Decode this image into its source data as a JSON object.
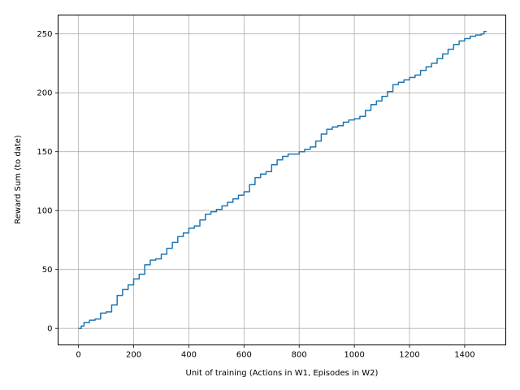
{
  "chart_data": {
    "type": "line",
    "title": "",
    "xlabel": "Unit of training (Actions in W1, Episodes in W2)",
    "ylabel": "Reward Sum (to date)",
    "xlim": [
      -74,
      1549
    ],
    "ylim": [
      -14,
      266
    ],
    "xticks": [
      0,
      200,
      400,
      600,
      800,
      1000,
      1200,
      1400
    ],
    "yticks": [
      0,
      50,
      100,
      150,
      200,
      250
    ],
    "grid": true,
    "legend": "none",
    "series": [
      {
        "color": "#1f77b4",
        "x": [
          0,
          10,
          20,
          40,
          60,
          80,
          100,
          120,
          140,
          160,
          180,
          200,
          220,
          240,
          260,
          280,
          300,
          320,
          340,
          360,
          380,
          400,
          420,
          440,
          460,
          480,
          500,
          520,
          540,
          560,
          580,
          600,
          620,
          640,
          660,
          680,
          700,
          720,
          740,
          760,
          780,
          800,
          820,
          840,
          860,
          880,
          900,
          920,
          940,
          960,
          980,
          1000,
          1020,
          1040,
          1060,
          1080,
          1100,
          1120,
          1140,
          1160,
          1180,
          1200,
          1220,
          1240,
          1260,
          1280,
          1300,
          1320,
          1340,
          1360,
          1380,
          1400,
          1420,
          1440,
          1460,
          1470,
          1480
        ],
        "y": [
          0,
          2,
          5,
          7,
          8,
          13,
          14,
          20,
          28,
          33,
          37,
          42,
          46,
          54,
          58,
          59,
          63,
          68,
          73,
          78,
          81,
          85,
          87,
          92,
          97,
          99,
          101,
          104,
          107,
          110,
          113,
          116,
          122,
          128,
          131,
          133,
          139,
          143,
          146,
          148,
          148,
          150,
          152,
          154,
          159,
          165,
          169,
          171,
          172,
          175,
          177,
          178,
          180,
          185,
          190,
          193,
          197,
          201,
          207,
          209,
          211,
          213,
          215,
          219,
          222,
          225,
          229,
          233,
          237,
          241,
          244,
          246,
          248,
          249,
          250,
          252,
          252
        ]
      }
    ]
  }
}
